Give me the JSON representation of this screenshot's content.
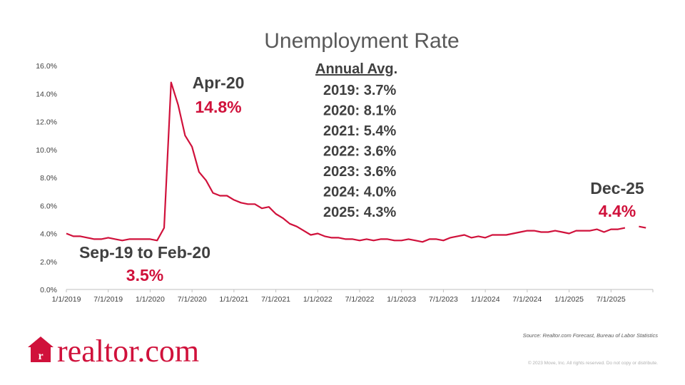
{
  "chart_data": {
    "type": "line",
    "title": "Unemployment Rate",
    "ylim": [
      0,
      16
    ],
    "yticks": [
      "0.0%",
      "2.0%",
      "4.0%",
      "6.0%",
      "8.0%",
      "10.0%",
      "12.0%",
      "14.0%",
      "16.0%"
    ],
    "xticks": [
      "1/1/2019",
      "7/1/2019",
      "1/1/2020",
      "7/1/2020",
      "1/1/2021",
      "7/1/2021",
      "1/1/2022",
      "7/1/2022",
      "1/1/2023",
      "7/1/2023",
      "1/1/2024",
      "7/1/2024",
      "1/1/2025",
      "7/1/2025"
    ],
    "series": [
      {
        "color": "#d0113b",
        "x_start": "1/1/2019",
        "frequency": "monthly",
        "values": [
          4.0,
          3.8,
          3.8,
          3.7,
          3.6,
          3.6,
          3.7,
          3.6,
          3.5,
          3.6,
          3.6,
          3.6,
          3.6,
          3.5,
          4.4,
          14.8,
          13.2,
          11.0,
          10.2,
          8.4,
          7.8,
          6.9,
          6.7,
          6.7,
          6.4,
          6.2,
          6.1,
          6.1,
          5.8,
          5.9,
          5.4,
          5.1,
          4.7,
          4.5,
          4.2,
          3.9,
          4.0,
          3.8,
          3.7,
          3.7,
          3.6,
          3.6,
          3.5,
          3.6,
          3.5,
          3.6,
          3.6,
          3.5,
          3.5,
          3.6,
          3.5,
          3.4,
          3.6,
          3.6,
          3.5,
          3.7,
          3.8,
          3.9,
          3.7,
          3.8,
          3.7,
          3.9,
          3.9,
          3.9,
          4.0,
          4.1,
          4.2,
          4.2,
          4.1,
          4.1,
          4.2,
          4.1,
          4.0,
          4.2,
          4.2,
          4.2,
          4.3,
          4.1,
          4.3,
          4.3,
          4.4,
          null,
          4.5,
          4.4
        ]
      }
    ],
    "annotations": {
      "trough_label": "Sep-19 to Feb-20",
      "trough_value": "3.5%",
      "peak_label": "Apr-20",
      "peak_value": "14.8%",
      "end_label": "Dec-25",
      "end_value": "4.4%"
    },
    "annual_avg": {
      "heading": "Annual Avg",
      "heading_suffix": ".",
      "rows": [
        "2019: 3.7%",
        "2020: 8.1%",
        "2021: 5.4%",
        "2022: 3.6%",
        "2023: 3.6%",
        "2024: 4.0%",
        "2025: 4.3%"
      ]
    },
    "grid": false,
    "legend": "none"
  },
  "footer": {
    "source": "Source: Realtor.com Forecast, Bureau of Labor Statistics",
    "copyright": "© 2023 Move, Inc. All rights reserved. Do not copy or distribute."
  },
  "brand": {
    "logo_text": "realtor.com",
    "accent_color": "#d0113b"
  }
}
